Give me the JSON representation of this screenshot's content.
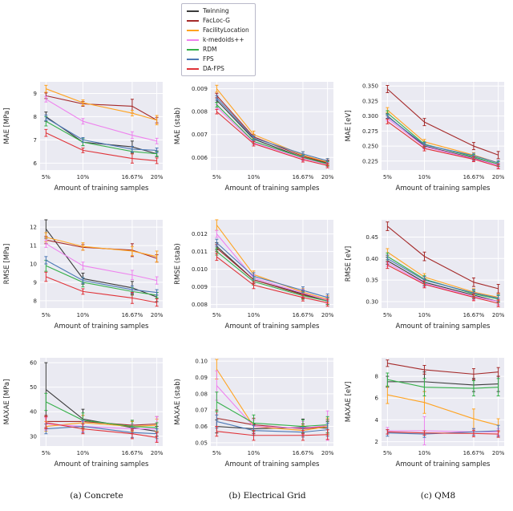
{
  "legend": {
    "entries": [
      {
        "name": "Twinning",
        "color": "#3b3b3b"
      },
      {
        "name": "FacLoc-G",
        "color": "#a52a2a"
      },
      {
        "name": "FacilityLocation",
        "color": "#ffa320"
      },
      {
        "name": "k-medoids++",
        "color": "#ee82ee"
      },
      {
        "name": "RDM",
        "color": "#35b04a"
      },
      {
        "name": "FPS",
        "color": "#4c78b5"
      },
      {
        "name": "DA-FPS",
        "color": "#e03238"
      }
    ]
  },
  "captions": [
    "(a) Concrete",
    "(b) Electrical Grid",
    "(c) QM8"
  ],
  "axes": {
    "xlabel": "Amount of training samples",
    "x_values": [
      5,
      10,
      16.67,
      20
    ],
    "x_tick_labels": [
      "5%",
      "10%",
      "16.67%",
      "20%"
    ],
    "xlim": [
      4.2,
      20.8
    ]
  },
  "style": {
    "plot_bg": "#eaeaf2",
    "grid_color": "#ffffff",
    "text_color": "#262626"
  },
  "chart_data": [
    {
      "type": "line",
      "ylabel": "MAE [MPa]",
      "ylim": [
        5.7,
        9.5
      ],
      "yticks": [
        6,
        7,
        8,
        9
      ],
      "ytick_labels": [
        "6",
        "7",
        "8",
        "9"
      ],
      "series": [
        {
          "name": "Twinning",
          "values": [
            8.0,
            6.9,
            6.7,
            6.4
          ],
          "err": [
            0.2,
            0.15,
            0.25,
            0.12
          ]
        },
        {
          "name": "FacLoc-G",
          "values": [
            8.9,
            8.55,
            8.45,
            7.85
          ],
          "err": [
            0.12,
            0.1,
            0.3,
            0.12
          ]
        },
        {
          "name": "FacilityLocation",
          "values": [
            9.2,
            8.6,
            8.15,
            7.85
          ],
          "err": [
            0.15,
            0.12,
            0.12,
            0.2
          ]
        },
        {
          "name": "k-medoids++",
          "values": [
            8.75,
            7.8,
            7.2,
            6.95
          ],
          "err": [
            0.12,
            0.12,
            0.15,
            0.12
          ]
        },
        {
          "name": "RDM",
          "values": [
            7.8,
            6.9,
            6.5,
            6.4
          ],
          "err": [
            0.2,
            0.15,
            0.1,
            0.1
          ]
        },
        {
          "name": "FPS",
          "values": [
            7.95,
            7.0,
            6.6,
            6.55
          ],
          "err": [
            0.12,
            0.1,
            0.12,
            0.1
          ]
        },
        {
          "name": "DA-FPS",
          "values": [
            7.3,
            6.55,
            6.2,
            6.1
          ],
          "err": [
            0.15,
            0.1,
            0.2,
            0.12
          ]
        }
      ]
    },
    {
      "type": "line",
      "ylabel": "MAE (stab)",
      "ylim": [
        0.00545,
        0.0093
      ],
      "yticks": [
        0.006,
        0.007,
        0.008,
        0.009
      ],
      "ytick_labels": [
        "0.006",
        "0.007",
        "0.008",
        "0.009"
      ],
      "series": [
        {
          "name": "Twinning",
          "values": [
            0.0085,
            0.0068,
            0.006,
            0.00575
          ],
          "err": 0.0001
        },
        {
          "name": "FacLoc-G",
          "values": [
            0.0087,
            0.0069,
            0.00605,
            0.00578
          ],
          "err": 0.0001
        },
        {
          "name": "FacilityLocation",
          "values": [
            0.009,
            0.007,
            0.0061,
            0.0058
          ],
          "err": 0.00015
        },
        {
          "name": "k-medoids++",
          "values": [
            0.0082,
            0.00665,
            0.00595,
            0.0057
          ],
          "err": 0.0001
        },
        {
          "name": "RDM",
          "values": [
            0.0083,
            0.0067,
            0.006,
            0.00572
          ],
          "err": 0.0001
        },
        {
          "name": "FPS",
          "values": [
            0.0086,
            0.00685,
            0.00615,
            0.00585
          ],
          "err": 0.0001
        },
        {
          "name": "DA-FPS",
          "values": [
            0.008,
            0.0066,
            0.0059,
            0.00565
          ],
          "err": 0.0001
        }
      ]
    },
    {
      "type": "line",
      "ylabel": "MAE [eV]",
      "ylim": [
        0.21,
        0.357
      ],
      "yticks": [
        0.225,
        0.25,
        0.275,
        0.3,
        0.325,
        0.35
      ],
      "ytick_labels": [
        "0.225",
        "0.250",
        "0.275",
        "0.300",
        "0.325",
        "0.350"
      ],
      "series": [
        {
          "name": "Twinning",
          "values": [
            0.3,
            0.25,
            0.23,
            0.218
          ],
          "err": 0.004
        },
        {
          "name": "FacLoc-G",
          "values": [
            0.345,
            0.29,
            0.25,
            0.235
          ],
          "err": 0.006
        },
        {
          "name": "FacilityLocation",
          "values": [
            0.31,
            0.257,
            0.235,
            0.222
          ],
          "err": 0.004
        },
        {
          "name": "k-medoids++",
          "values": [
            0.296,
            0.249,
            0.229,
            0.218
          ],
          "err": 0.004
        },
        {
          "name": "RDM",
          "values": [
            0.305,
            0.253,
            0.232,
            0.22
          ],
          "err": 0.004
        },
        {
          "name": "FPS",
          "values": [
            0.299,
            0.252,
            0.234,
            0.222
          ],
          "err": 0.004
        },
        {
          "name": "DA-FPS",
          "values": [
            0.291,
            0.246,
            0.228,
            0.216
          ],
          "err": 0.004
        }
      ]
    },
    {
      "type": "line",
      "ylabel": "RMSE [MPa]",
      "ylim": [
        7.6,
        12.4
      ],
      "yticks": [
        8,
        9,
        10,
        11,
        12
      ],
      "ytick_labels": [
        "8",
        "9",
        "10",
        "11",
        "12"
      ],
      "series": [
        {
          "name": "Twinning",
          "values": [
            11.9,
            9.2,
            8.7,
            8.2
          ],
          "err": [
            0.5,
            0.3,
            0.35,
            0.25
          ]
        },
        {
          "name": "FacLoc-G",
          "values": [
            11.3,
            10.9,
            10.75,
            10.3
          ],
          "err": [
            0.2,
            0.15,
            0.35,
            0.2
          ]
        },
        {
          "name": "FacilityLocation",
          "values": [
            11.45,
            10.95,
            10.7,
            10.4
          ],
          "err": [
            0.25,
            0.2,
            0.25,
            0.3
          ]
        },
        {
          "name": "k-medoids++",
          "values": [
            11.1,
            9.9,
            9.4,
            9.1
          ],
          "err": [
            0.2,
            0.2,
            0.25,
            0.2
          ]
        },
        {
          "name": "RDM",
          "values": [
            9.9,
            9.0,
            8.5,
            8.3
          ],
          "err": [
            0.3,
            0.25,
            0.2,
            0.15
          ]
        },
        {
          "name": "FPS",
          "values": [
            10.2,
            9.1,
            8.6,
            8.45
          ],
          "err": [
            0.2,
            0.15,
            0.2,
            0.15
          ]
        },
        {
          "name": "DA-FPS",
          "values": [
            9.3,
            8.5,
            8.15,
            7.9
          ],
          "err": [
            0.25,
            0.15,
            0.3,
            0.2
          ]
        }
      ]
    },
    {
      "type": "line",
      "ylabel": "RMSE (stab)",
      "ylim": [
        0.0078,
        0.0128
      ],
      "yticks": [
        0.008,
        0.009,
        0.01,
        0.011,
        0.012
      ],
      "ytick_labels": [
        "0.008",
        "0.009",
        "0.010",
        "0.011",
        "0.012"
      ],
      "series": [
        {
          "name": "Twinning",
          "values": [
            0.0113,
            0.0094,
            0.0086,
            0.0082
          ],
          "err": 0.0002
        },
        {
          "name": "FacLoc-G",
          "values": [
            0.0112,
            0.0094,
            0.00855,
            0.0082
          ],
          "err": 0.0002
        },
        {
          "name": "FacilityLocation",
          "values": [
            0.0125,
            0.0097,
            0.0087,
            0.0083
          ],
          "err": [
            0.0003,
            0.0002,
            0.0002,
            0.0002
          ]
        },
        {
          "name": "k-medoids++",
          "values": [
            0.012,
            0.0095,
            0.00865,
            0.00825
          ],
          "err": 0.0002
        },
        {
          "name": "RDM",
          "values": [
            0.011,
            0.0093,
            0.0085,
            0.0082
          ],
          "err": 0.0002
        },
        {
          "name": "FPS",
          "values": [
            0.0115,
            0.0096,
            0.0088,
            0.0084
          ],
          "err": 0.0002
        },
        {
          "name": "DA-FPS",
          "values": [
            0.0107,
            0.0091,
            0.0084,
            0.0081
          ],
          "err": 0.0002
        }
      ]
    },
    {
      "type": "line",
      "ylabel": "RMSE [eV]",
      "ylim": [
        0.285,
        0.49
      ],
      "yticks": [
        0.3,
        0.35,
        0.4,
        0.45
      ],
      "ytick_labels": [
        "0.30",
        "0.35",
        "0.40",
        "0.45"
      ],
      "series": [
        {
          "name": "Twinning",
          "values": [
            0.395,
            0.345,
            0.315,
            0.3
          ],
          "err": 0.008
        },
        {
          "name": "FacLoc-G",
          "values": [
            0.475,
            0.405,
            0.345,
            0.33
          ],
          "err": 0.01
        },
        {
          "name": "FacilityLocation",
          "values": [
            0.415,
            0.357,
            0.322,
            0.31
          ],
          "err": 0.008
        },
        {
          "name": "k-medoids++",
          "values": [
            0.39,
            0.342,
            0.312,
            0.3
          ],
          "err": 0.008
        },
        {
          "name": "RDM",
          "values": [
            0.405,
            0.352,
            0.318,
            0.306
          ],
          "err": 0.008
        },
        {
          "name": "FPS",
          "values": [
            0.4,
            0.35,
            0.32,
            0.308
          ],
          "err": 0.008
        },
        {
          "name": "DA-FPS",
          "values": [
            0.385,
            0.34,
            0.31,
            0.296
          ],
          "err": 0.008
        }
      ]
    },
    {
      "type": "line",
      "ylabel": "MAXAE [MPa]",
      "ylim": [
        26,
        62
      ],
      "yticks": [
        30,
        40,
        50,
        60
      ],
      "ytick_labels": [
        "30",
        "40",
        "50",
        "60"
      ],
      "series": [
        {
          "name": "Twinning",
          "values": [
            49,
            37,
            33.5,
            32
          ],
          "err": [
            11,
            4,
            2.5,
            2
          ]
        },
        {
          "name": "FacLoc-G",
          "values": [
            36,
            36,
            34.5,
            35
          ],
          "err": [
            2.5,
            2.5,
            2,
            3
          ]
        },
        {
          "name": "FacilityLocation",
          "values": [
            34,
            35.5,
            34,
            34.5
          ],
          "err": [
            2,
            3,
            2,
            2.5
          ]
        },
        {
          "name": "k-medoids++",
          "values": [
            35,
            34,
            33,
            33
          ],
          "err": [
            2.5,
            2,
            2,
            5
          ]
        },
        {
          "name": "RDM",
          "values": [
            44,
            36.5,
            34,
            33.5
          ],
          "err": [
            3.5,
            3,
            2.5,
            2
          ]
        },
        {
          "name": "FPS",
          "values": [
            33,
            34,
            31.5,
            31
          ],
          "err": [
            2,
            2.5,
            2,
            2
          ]
        },
        {
          "name": "DA-FPS",
          "values": [
            35.5,
            33,
            31,
            29.5
          ],
          "err": [
            2.5,
            2,
            2,
            2
          ]
        }
      ]
    },
    {
      "type": "line",
      "ylabel": "MAXAE (stab)",
      "ylim": [
        0.048,
        0.102
      ],
      "yticks": [
        0.05,
        0.06,
        0.07,
        0.08,
        0.09,
        0.1
      ],
      "ytick_labels": [
        "0.05",
        "0.06",
        "0.07",
        "0.08",
        "0.09",
        "0.10"
      ],
      "series": [
        {
          "name": "Twinning",
          "values": [
            0.06,
            0.0585,
            0.0595,
            0.059
          ],
          "err": [
            0.004,
            0.003,
            0.005,
            0.004
          ]
        },
        {
          "name": "FacLoc-G",
          "values": [
            0.065,
            0.061,
            0.0585,
            0.06
          ],
          "err": [
            0.005,
            0.004,
            0.003,
            0.004
          ]
        },
        {
          "name": "FacilityLocation",
          "values": [
            0.095,
            0.06,
            0.0575,
            0.06
          ],
          "err": [
            0.006,
            0.004,
            0.003,
            0.005
          ]
        },
        {
          "name": "k-medoids++",
          "values": [
            0.085,
            0.06,
            0.059,
            0.0605
          ],
          "err": [
            0.009,
            0.004,
            0.004,
            0.009
          ]
        },
        {
          "name": "RDM",
          "values": [
            0.075,
            0.062,
            0.06,
            0.061
          ],
          "err": [
            0.006,
            0.005,
            0.004,
            0.005
          ]
        },
        {
          "name": "FPS",
          "values": [
            0.063,
            0.0575,
            0.0565,
            0.058
          ],
          "err": [
            0.004,
            0.003,
            0.003,
            0.004
          ]
        },
        {
          "name": "DA-FPS",
          "values": [
            0.057,
            0.0545,
            0.0545,
            0.055
          ],
          "err": [
            0.003,
            0.003,
            0.003,
            0.003
          ]
        }
      ]
    },
    {
      "type": "line",
      "ylabel": "MAXAE [eV]",
      "ylim": [
        1.6,
        9.7
      ],
      "yticks": [
        2,
        4,
        6,
        8
      ],
      "ytick_labels": [
        "2",
        "4",
        "6",
        "8"
      ],
      "series": [
        {
          "name": "Twinning",
          "values": [
            7.5,
            7.5,
            7.2,
            7.3
          ],
          "err": [
            0.5,
            0.9,
            0.6,
            0.7
          ]
        },
        {
          "name": "FacLoc-G",
          "values": [
            9.2,
            8.6,
            8.2,
            8.4
          ],
          "err": [
            0.3,
            0.4,
            0.5,
            0.4
          ]
        },
        {
          "name": "FacilityLocation",
          "values": [
            6.3,
            5.6,
            4.1,
            3.5
          ],
          "err": [
            0.8,
            1.0,
            0.9,
            0.6
          ]
        },
        {
          "name": "k-medoids++",
          "values": [
            3.0,
            3.0,
            2.9,
            2.9
          ],
          "err": [
            0.3,
            1.3,
            0.3,
            0.3
          ]
        },
        {
          "name": "RDM",
          "values": [
            7.7,
            7.0,
            6.9,
            7.0
          ],
          "err": [
            0.6,
            0.8,
            0.7,
            0.8
          ]
        },
        {
          "name": "FPS",
          "values": [
            2.8,
            2.7,
            2.9,
            3.0
          ],
          "err": [
            0.3,
            0.3,
            0.3,
            0.5
          ]
        },
        {
          "name": "DA-FPS",
          "values": [
            2.9,
            2.8,
            2.75,
            2.7
          ],
          "err": [
            0.2,
            0.2,
            0.3,
            0.3
          ]
        }
      ]
    }
  ]
}
